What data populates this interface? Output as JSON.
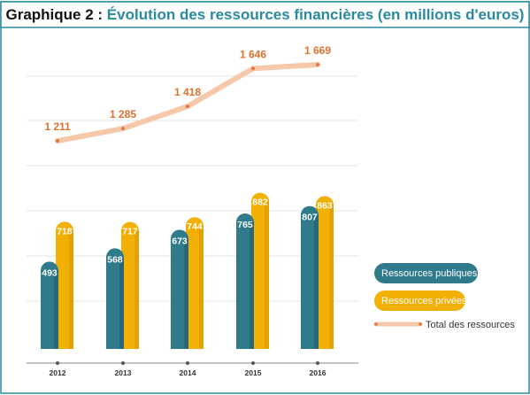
{
  "title": {
    "prefix": "Graphique 2 : ",
    "main": "Évolution des ressources financières (en millions d'euros)"
  },
  "colors": {
    "frame": "#2a8aa0",
    "publiques": "#2f7b8c",
    "publiques_shadow": "#255f6c",
    "privees": "#f2b005",
    "privees_shadow": "#cf9200",
    "total_line": "#f6c8aa",
    "total_dot": "#e8763a",
    "total_label": "#e0702a",
    "grid": "#e6e6e6"
  },
  "chart_data": {
    "type": "bar",
    "categories": [
      "2012",
      "2013",
      "2014",
      "2015",
      "2016"
    ],
    "series": [
      {
        "name": "Ressources publiques",
        "type": "bar",
        "values": [
          493,
          568,
          673,
          765,
          807
        ]
      },
      {
        "name": "Ressources privées",
        "type": "bar",
        "values": [
          718,
          717,
          744,
          882,
          863
        ]
      },
      {
        "name": "Total des ressources",
        "type": "line",
        "values": [
          1211,
          1285,
          1418,
          1646,
          1669
        ]
      }
    ],
    "value_labels": {
      "publiques": [
        "493",
        "568",
        "673",
        "765",
        "807"
      ],
      "privees": [
        "718",
        "717",
        "744",
        "882",
        "863"
      ],
      "total": [
        "1 211",
        "1 285",
        "1 418",
        "1 646",
        "1 669"
      ]
    },
    "ylim": [
      0,
      1800
    ],
    "grid": true,
    "legend_position": "right"
  }
}
